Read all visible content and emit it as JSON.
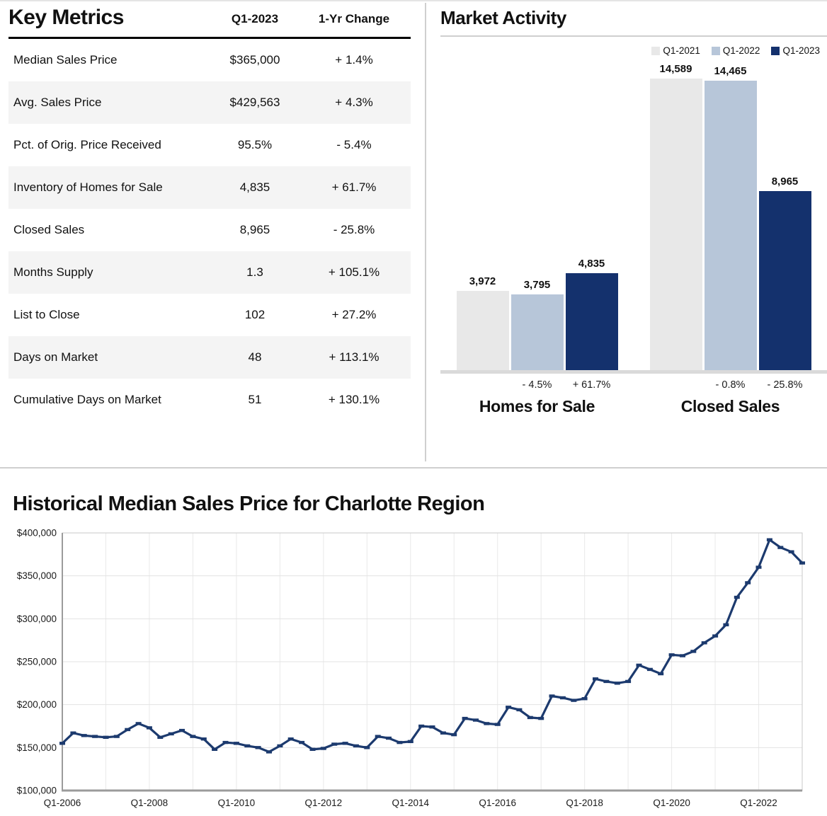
{
  "key_metrics": {
    "title": "Key Metrics",
    "columns": {
      "current": "Q1-2023",
      "change": "1-Yr Change"
    },
    "rows": [
      {
        "label": "Median Sales Price",
        "value": "$365,000",
        "change": "+ 1.4%"
      },
      {
        "label": "Avg. Sales Price",
        "value": "$429,563",
        "change": "+ 4.3%"
      },
      {
        "label": "Pct. of Orig. Price Received",
        "value": "95.5%",
        "change": "- 5.4%"
      },
      {
        "label": "Inventory of Homes for Sale",
        "value": "4,835",
        "change": "+ 61.7%"
      },
      {
        "label": "Closed Sales",
        "value": "8,965",
        "change": "- 25.8%"
      },
      {
        "label": "Months Supply",
        "value": "1.3",
        "change": "+ 105.1%"
      },
      {
        "label": "List to Close",
        "value": "102",
        "change": "+ 27.2%"
      },
      {
        "label": "Days on Market",
        "value": "48",
        "change": "+ 113.1%"
      },
      {
        "label": "Cumulative Days on Market",
        "value": "51",
        "change": "+ 130.1%"
      }
    ]
  },
  "market_activity": {
    "title": "Market Activity"
  },
  "chart_data": [
    {
      "type": "bar",
      "title": "Market Activity",
      "categories": [
        "Homes for Sale",
        "Closed Sales"
      ],
      "series": [
        {
          "name": "Q1-2021",
          "color": "#e8e8e8",
          "values": [
            3972,
            14589
          ]
        },
        {
          "name": "Q1-2022",
          "color": "#b7c6d9",
          "values": [
            3795,
            14465
          ]
        },
        {
          "name": "Q1-2023",
          "color": "#14316d",
          "values": [
            4835,
            8965
          ]
        }
      ],
      "value_labels": [
        [
          "3,972",
          "3,795",
          "4,835"
        ],
        [
          "14,589",
          "14,465",
          "8,965"
        ]
      ],
      "change_labels": [
        [
          "",
          "- 4.5%",
          "+ 61.7%"
        ],
        [
          "",
          "- 0.8%",
          "- 25.8%"
        ]
      ],
      "ylim": [
        0,
        15500
      ],
      "legend_position": "top-right",
      "grid": false
    },
    {
      "type": "line",
      "title": "Historical Median Sales Price for Charlotte Region",
      "x_frequency": "quarterly",
      "x_range": [
        "Q1-2006",
        "Q1-2023"
      ],
      "x_tick_labels": [
        "Q1-2006",
        "Q1-2008",
        "Q1-2010",
        "Q1-2012",
        "Q1-2014",
        "Q1-2016",
        "Q1-2018",
        "Q1-2020",
        "Q1-2022"
      ],
      "x_tick_every": 8,
      "y_ticks": [
        100000,
        150000,
        200000,
        250000,
        300000,
        350000,
        400000
      ],
      "y_tick_labels": [
        "$100,000",
        "$150,000",
        "$200,000",
        "$250,000",
        "$300,000",
        "$350,000",
        "$400,000"
      ],
      "ylim": [
        100000,
        400000
      ],
      "line_color": "#1c3a6e",
      "grid": true,
      "values": [
        155000,
        167000,
        164000,
        163000,
        162000,
        163000,
        171000,
        178000,
        173000,
        162000,
        166000,
        170000,
        163000,
        160000,
        148000,
        156000,
        155000,
        152000,
        150000,
        145000,
        152000,
        160000,
        156000,
        148000,
        149000,
        154000,
        155000,
        152000,
        150000,
        163000,
        161000,
        156000,
        157000,
        175000,
        174000,
        167000,
        165000,
        184000,
        182000,
        178000,
        177000,
        197000,
        194000,
        185000,
        184000,
        210000,
        208000,
        205000,
        207000,
        230000,
        227000,
        225000,
        227000,
        246000,
        241000,
        236000,
        258000,
        257000,
        262000,
        272000,
        280000,
        293000,
        325000,
        342000,
        360000,
        392000,
        383000,
        378000,
        365000
      ]
    }
  ],
  "colors": {
    "accent_navy": "#14316d",
    "light_blue": "#b7c6d9",
    "light_gray": "#e8e8e8",
    "row_alt": "#f4f4f4",
    "rule_gray": "#cfcfcf"
  }
}
